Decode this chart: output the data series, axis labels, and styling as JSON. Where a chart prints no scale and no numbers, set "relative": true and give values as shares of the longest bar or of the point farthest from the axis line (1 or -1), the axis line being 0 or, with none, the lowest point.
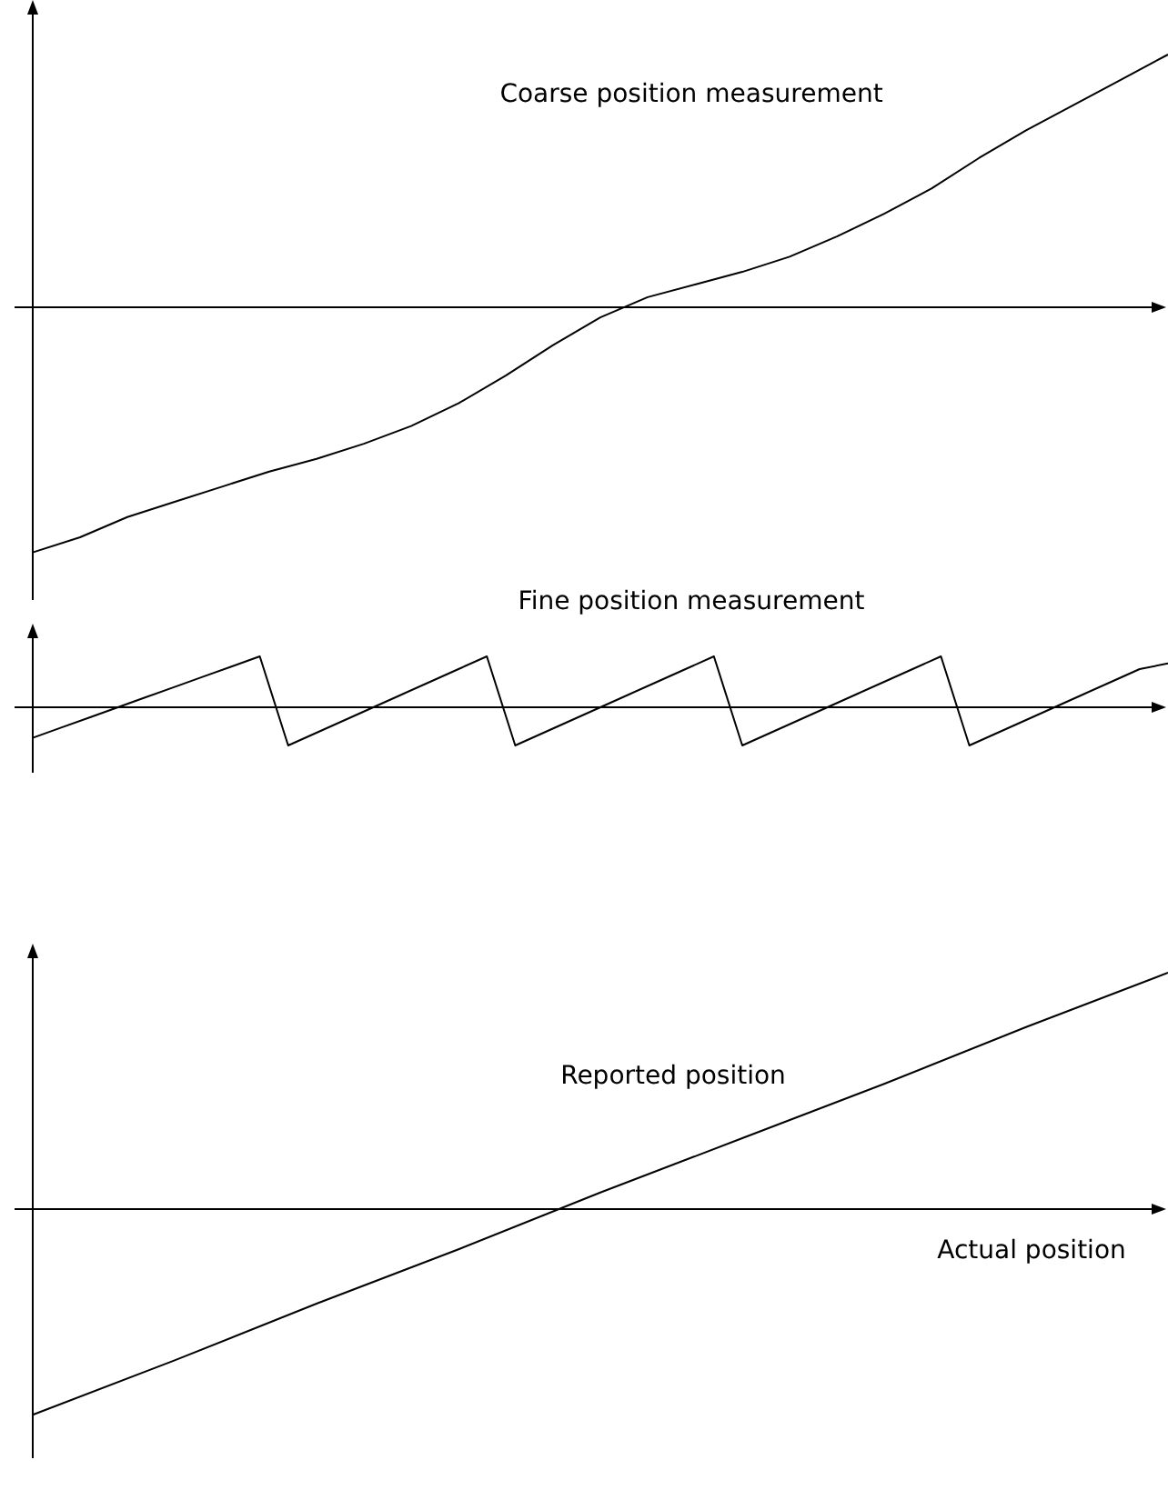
{
  "chart_data": [
    {
      "type": "line",
      "title": "Coarse position measurement",
      "relative": true,
      "categories": [
        null,
        null,
        null,
        null,
        null,
        null,
        null,
        null,
        null,
        null,
        null,
        null,
        null,
        null,
        null,
        null,
        null,
        null,
        null,
        null,
        null,
        null,
        null,
        null,
        null
      ],
      "series": [
        {
          "color": "#000000",
          "values": [
            -0.97,
            -0.91,
            -0.83,
            -0.77,
            -0.71,
            -0.65,
            -0.6,
            -0.54,
            -0.47,
            -0.38,
            -0.27,
            -0.15,
            -0.04,
            0.04,
            0.09,
            0.14,
            0.2,
            0.28,
            0.37,
            0.47,
            0.59,
            0.7,
            0.8,
            0.9,
            1
          ]
        }
      ]
    },
    {
      "type": "line",
      "title": "Fine position measurement",
      "relative": true,
      "categories": [
        null,
        null,
        null,
        null,
        null,
        null,
        null,
        null,
        null,
        null,
        null,
        null,
        null,
        null,
        null,
        null,
        null,
        null,
        null,
        null,
        null,
        null,
        null,
        null,
        null,
        null,
        null,
        null,
        null,
        null,
        null,
        null,
        null,
        null,
        null,
        null,
        null,
        null,
        null,
        null,
        null
      ],
      "series": [
        {
          "color": "#000000",
          "values": [
            -0.6,
            -0.4,
            -0.2,
            0,
            0.2,
            0.4,
            0.6,
            0.8,
            1,
            -0.75,
            -0.5,
            -0.25,
            0,
            0.25,
            0.5,
            0.75,
            1,
            -0.75,
            -0.5,
            -0.25,
            0,
            0.25,
            0.5,
            0.75,
            1,
            -0.75,
            -0.5,
            -0.25,
            0,
            0.25,
            0.5,
            0.75,
            1,
            -0.75,
            -0.5,
            -0.25,
            0,
            0.25,
            0.5,
            0.75,
            0.86
          ]
        }
      ]
    },
    {
      "type": "line",
      "title": "Reported position",
      "xlabel": "Actual position",
      "relative": true,
      "categories": [
        null,
        null,
        null,
        null,
        null,
        null,
        null,
        null,
        null
      ],
      "series": [
        {
          "color": "#000000",
          "values": [
            -0.87,
            -0.64,
            -0.4,
            -0.17,
            0.07,
            0.3,
            0.53,
            0.77,
            1
          ]
        }
      ]
    }
  ]
}
